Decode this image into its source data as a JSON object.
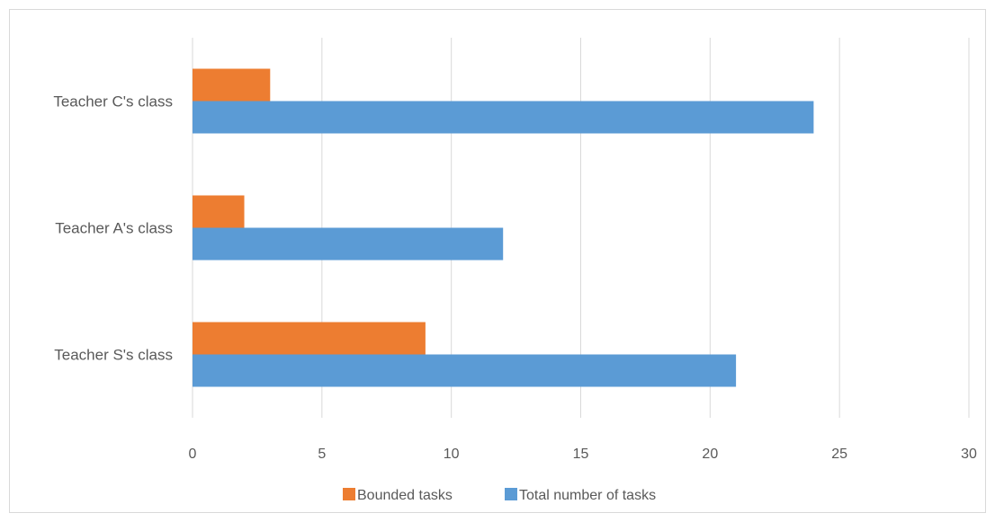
{
  "chart_data": {
    "type": "bar",
    "orientation": "horizontal",
    "categories": [
      "Teacher C's class",
      "Teacher A's class",
      "Teacher S's class"
    ],
    "series": [
      {
        "name": "Bounded tasks",
        "values": [
          3,
          2,
          9
        ],
        "color": "#ED7D31"
      },
      {
        "name": "Total number of tasks",
        "values": [
          24,
          12,
          21
        ],
        "color": "#5B9BD5"
      }
    ],
    "xlim": [
      0,
      30
    ],
    "xticks": [
      0,
      5,
      10,
      15,
      20,
      25,
      30
    ],
    "grid": true,
    "legend_position": "bottom",
    "title": "",
    "xlabel": "",
    "ylabel": ""
  }
}
